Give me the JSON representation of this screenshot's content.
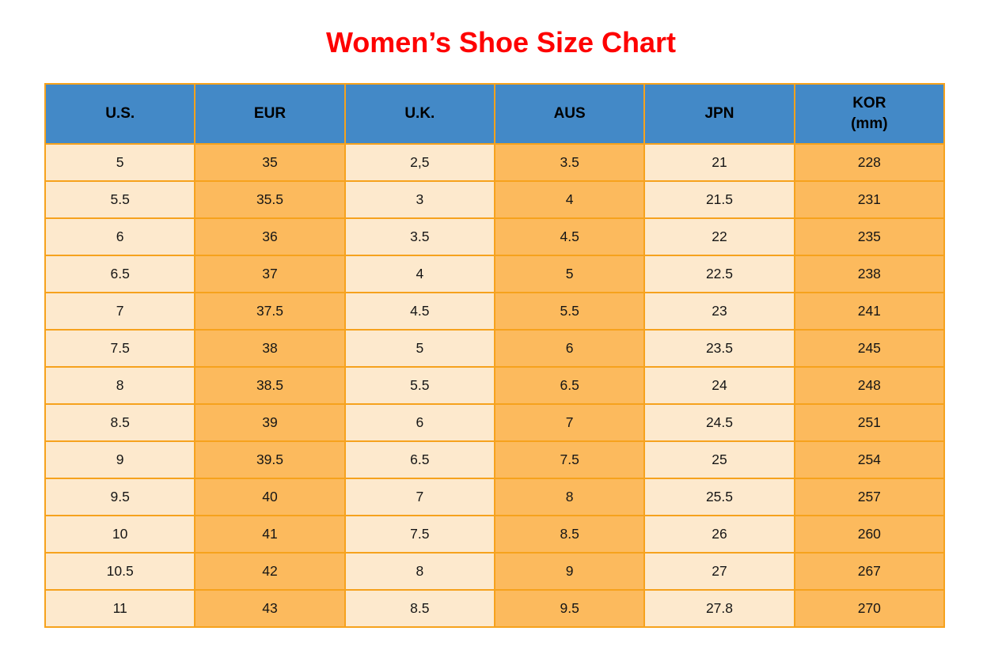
{
  "title": "Women’s Shoe Size Chart",
  "table": {
    "headers": [
      {
        "lines": [
          "U.S."
        ]
      },
      {
        "lines": [
          "EUR"
        ]
      },
      {
        "lines": [
          "U.K."
        ]
      },
      {
        "lines": [
          "AUS"
        ]
      },
      {
        "lines": [
          "JPN"
        ]
      },
      {
        "lines": [
          "KOR",
          "(mm)"
        ]
      }
    ],
    "rows": [
      [
        "5",
        "35",
        "2,5",
        "3.5",
        "21",
        "228"
      ],
      [
        "5.5",
        "35.5",
        "3",
        "4",
        "21.5",
        "231"
      ],
      [
        "6",
        "36",
        "3.5",
        "4.5",
        "22",
        "235"
      ],
      [
        "6.5",
        "37",
        "4",
        "5",
        "22.5",
        "238"
      ],
      [
        "7",
        "37.5",
        "4.5",
        "5.5",
        "23",
        "241"
      ],
      [
        "7.5",
        "38",
        "5",
        "6",
        "23.5",
        "245"
      ],
      [
        "8",
        "38.5",
        "5.5",
        "6.5",
        "24",
        "248"
      ],
      [
        "8.5",
        "39",
        "6",
        "7",
        "24.5",
        "251"
      ],
      [
        "9",
        "39.5",
        "6.5",
        "7.5",
        "25",
        "254"
      ],
      [
        "9.5",
        "40",
        "7",
        "8",
        "25.5",
        "257"
      ],
      [
        "10",
        "41",
        "7.5",
        "8.5",
        "26",
        "260"
      ],
      [
        "10.5",
        "42",
        "8",
        "9",
        "27",
        "267"
      ],
      [
        "11",
        "43",
        "8.5",
        "9.5",
        "27.8",
        "270"
      ]
    ]
  },
  "colors": {
    "title": "#fe0000",
    "header_bg": "#4389c7",
    "border": "#f6a21d",
    "column_light": "#fde9cd",
    "column_orange": "#fcba5d",
    "cell_text": "#161616"
  }
}
